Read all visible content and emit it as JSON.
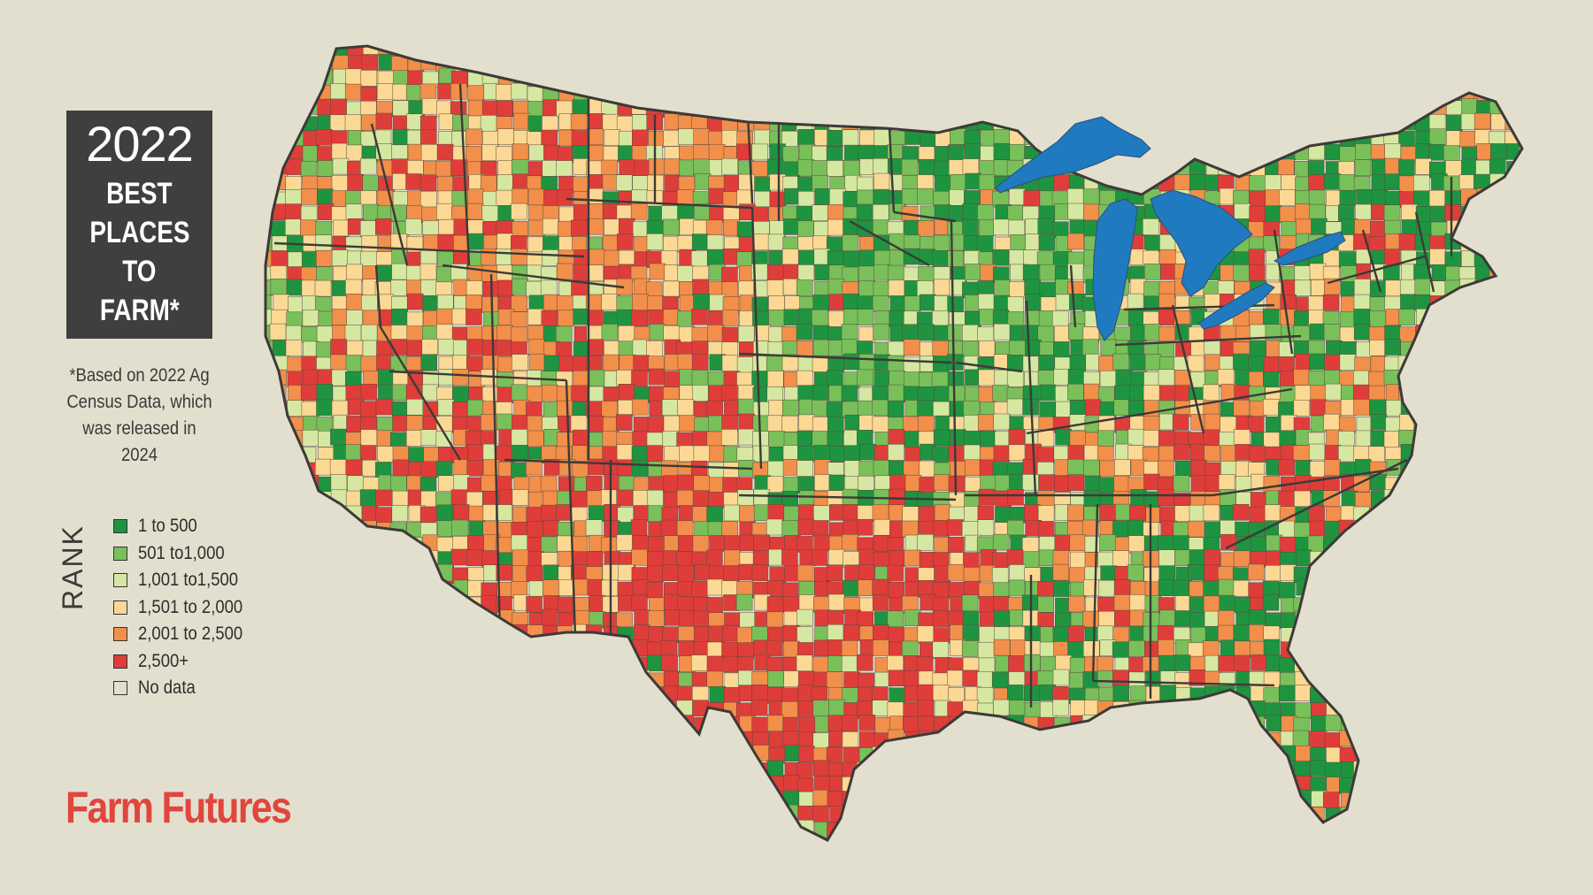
{
  "title": {
    "year": "2022",
    "lines": [
      "BEST",
      "PLACES",
      "TO",
      "FARM*"
    ]
  },
  "note": "*Based on 2022 Ag Census Data, which was released in 2024",
  "legend": {
    "label": "RANK",
    "items": [
      {
        "label": "1 to 500",
        "color": "#1e9440"
      },
      {
        "label": "501 to1,000",
        "color": "#79c05a"
      },
      {
        "label": "1,001 to1,500",
        "color": "#d6e7a2"
      },
      {
        "label": "1,501 to 2,000",
        "color": "#fbd994"
      },
      {
        "label": "2,001 to 2,500",
        "color": "#f28f4a"
      },
      {
        "label": "2,500+",
        "color": "#df3d3a"
      },
      {
        "label": "No data",
        "color": "#e3dfcf"
      }
    ]
  },
  "brand": "Farm Futures",
  "colors": {
    "background": "#e3dfcf",
    "lakes": "#1f7ac0",
    "border": "#3d3a38"
  }
}
